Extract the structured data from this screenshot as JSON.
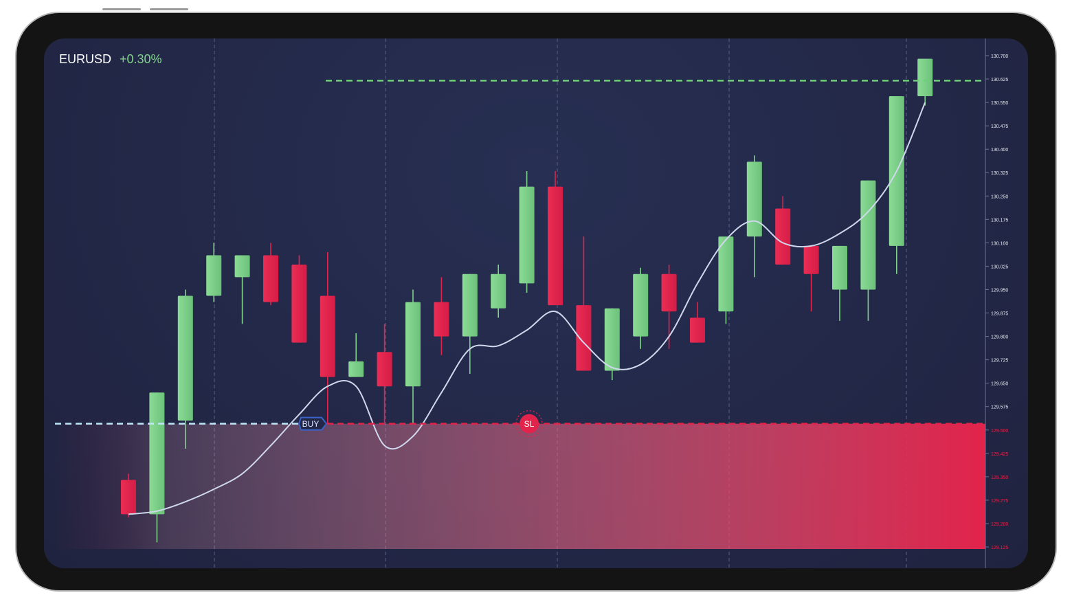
{
  "header": {
    "symbol": "EURUSD",
    "change": "+0.30%"
  },
  "markers": {
    "buy_label": "BUY",
    "sl_label": "SL"
  },
  "colors": {
    "bull": "#7fd189",
    "bear": "#e2234b",
    "buy_line": "#bfe6f5",
    "sl_line": "#e2234b",
    "tp_line": "#6fcf7a",
    "ma_line": "#cfd8ec",
    "buy_badge": "#3a63c8"
  },
  "chart_data": {
    "type": "candlestick",
    "yaxis_ticks": [
      "130.700",
      "130.625",
      "130.550",
      "130.475",
      "130.400",
      "130.325",
      "130.250",
      "130.175",
      "130.100",
      "130.025",
      "129.950",
      "129.875",
      "129.800",
      "129.725",
      "129.650",
      "129.575",
      "129.500",
      "129.425",
      "129.350",
      "129.275",
      "129.200",
      "129.125"
    ],
    "ylim": [
      129.125,
      130.7
    ],
    "buy_price": 129.52,
    "stop_loss_price": 129.52,
    "take_profit_price": 130.62,
    "candles": [
      {
        "o": 129.34,
        "h": 129.36,
        "l": 129.22,
        "c": 129.23
      },
      {
        "o": 129.23,
        "h": 129.62,
        "l": 129.14,
        "c": 129.62
      },
      {
        "o": 129.53,
        "h": 129.95,
        "l": 129.44,
        "c": 129.93
      },
      {
        "o": 129.93,
        "h": 130.1,
        "l": 129.91,
        "c": 130.06
      },
      {
        "o": 129.99,
        "h": 130.06,
        "l": 129.84,
        "c": 130.06
      },
      {
        "o": 130.06,
        "h": 130.1,
        "l": 129.9,
        "c": 129.91
      },
      {
        "o": 130.03,
        "h": 130.06,
        "l": 129.78,
        "c": 129.78
      },
      {
        "o": 129.93,
        "h": 130.07,
        "l": 129.52,
        "c": 129.67
      },
      {
        "o": 129.67,
        "h": 129.81,
        "l": 129.67,
        "c": 129.72
      },
      {
        "o": 129.75,
        "h": 129.84,
        "l": 129.52,
        "c": 129.64
      },
      {
        "o": 129.64,
        "h": 129.95,
        "l": 129.52,
        "c": 129.91
      },
      {
        "o": 129.91,
        "h": 129.99,
        "l": 129.74,
        "c": 129.8
      },
      {
        "o": 129.8,
        "h": 130.0,
        "l": 129.68,
        "c": 130.0
      },
      {
        "o": 129.89,
        "h": 130.03,
        "l": 129.86,
        "c": 130.0
      },
      {
        "o": 129.97,
        "h": 130.33,
        "l": 129.94,
        "c": 130.28
      },
      {
        "o": 130.28,
        "h": 130.33,
        "l": 129.9,
        "c": 129.9
      },
      {
        "o": 129.9,
        "h": 130.12,
        "l": 129.69,
        "c": 129.69
      },
      {
        "o": 129.69,
        "h": 129.89,
        "l": 129.66,
        "c": 129.89
      },
      {
        "o": 129.8,
        "h": 130.02,
        "l": 129.76,
        "c": 130.0
      },
      {
        "o": 130.0,
        "h": 130.03,
        "l": 129.76,
        "c": 129.88
      },
      {
        "o": 129.86,
        "h": 129.91,
        "l": 129.78,
        "c": 129.78
      },
      {
        "o": 129.88,
        "h": 130.12,
        "l": 129.84,
        "c": 130.12
      },
      {
        "o": 130.12,
        "h": 130.38,
        "l": 129.99,
        "c": 130.36
      },
      {
        "o": 130.21,
        "h": 130.25,
        "l": 130.03,
        "c": 130.03
      },
      {
        "o": 130.09,
        "h": 130.09,
        "l": 129.88,
        "c": 130.0
      },
      {
        "o": 129.95,
        "h": 130.09,
        "l": 129.85,
        "c": 130.09
      },
      {
        "o": 129.95,
        "h": 130.3,
        "l": 129.85,
        "c": 130.3
      },
      {
        "o": 130.09,
        "h": 130.57,
        "l": 130.0,
        "c": 130.57
      },
      {
        "o": 130.57,
        "h": 130.69,
        "l": 130.54,
        "c": 130.69
      }
    ],
    "moving_average": [
      129.23,
      129.24,
      129.27,
      129.31,
      129.36,
      129.45,
      129.55,
      129.64,
      129.64,
      129.45,
      129.48,
      129.62,
      129.76,
      129.77,
      129.82,
      129.88,
      129.78,
      129.7,
      129.71,
      129.8,
      129.97,
      130.11,
      130.17,
      130.1,
      130.09,
      130.13,
      130.2,
      130.33,
      130.55
    ],
    "grid": "dashed-vertical",
    "legend": "none"
  }
}
